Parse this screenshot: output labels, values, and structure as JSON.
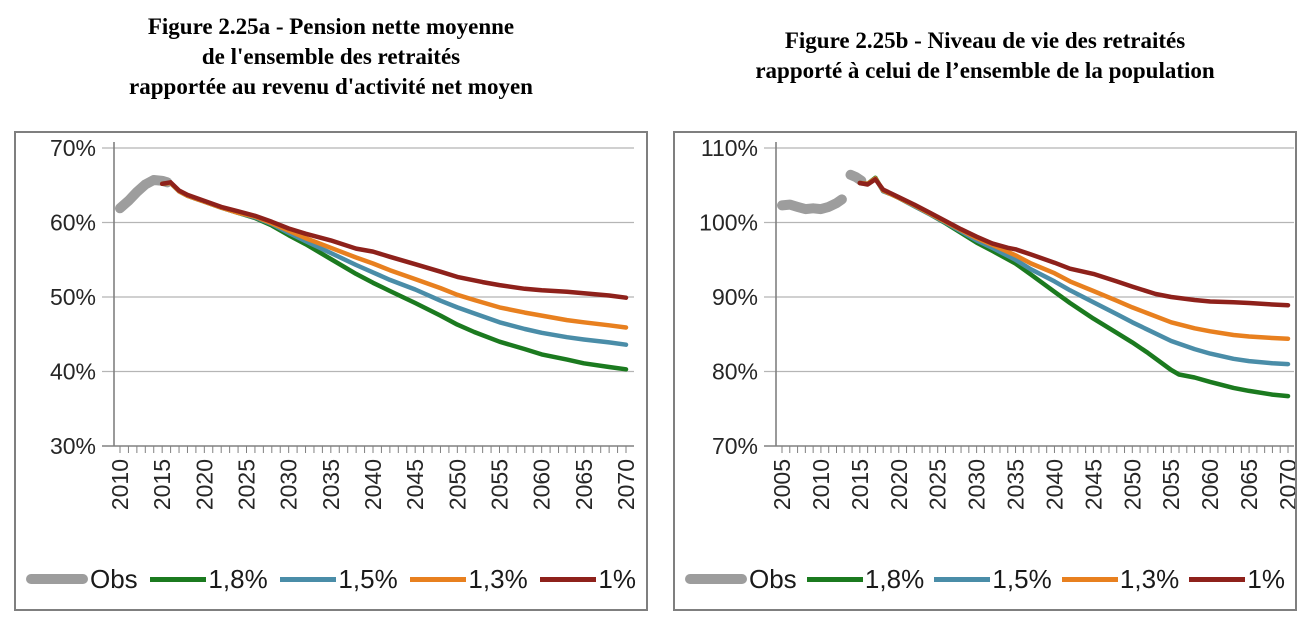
{
  "colors": {
    "obs": "#9d9d9d",
    "s18": "#1b7a1f",
    "s15": "#4a8da8",
    "s13": "#e8801f",
    "s10": "#8e211b",
    "grid": "#b5b5b5",
    "axis": "#808080",
    "tick_text": "#262626"
  },
  "chart_data": [
    {
      "type": "line",
      "title": "Figure 2.25a - Pension nette moyenne de l'ensemble des retraités rapportée au revenu d'activité net moyen",
      "title_lines": [
        "Figure 2.25a - Pension nette moyenne",
        "de l'ensemble des retraités",
        "rapportée au revenu d'activité net moyen"
      ],
      "xlabel": "",
      "ylabel": "",
      "ylim": [
        30,
        70
      ],
      "yticks": [
        30,
        40,
        50,
        60,
        70
      ],
      "ytick_labels": [
        "30%",
        "40%",
        "50%",
        "60%",
        "70%"
      ],
      "xticks": [
        2010,
        2015,
        2020,
        2025,
        2030,
        2035,
        2040,
        2045,
        2050,
        2055,
        2060,
        2065,
        2070
      ],
      "grid": true,
      "legend_position": "bottom",
      "series": [
        {
          "name": "Obs",
          "color_key": "obs",
          "width": 10,
          "x": [
            2010,
            2011,
            2012,
            2013,
            2014,
            2015,
            2015.6
          ],
          "y": [
            61.9,
            62.9,
            64.1,
            65.1,
            65.7,
            65.6,
            65.4
          ]
        },
        {
          "name": "1,8%",
          "color_key": "s18",
          "width": 4.5,
          "x": [
            2015,
            2016,
            2017,
            2018,
            2019,
            2020,
            2022,
            2024,
            2026,
            2028,
            2030,
            2032,
            2035,
            2038,
            2040,
            2042,
            2045,
            2048,
            2050,
            2052,
            2055,
            2058,
            2060,
            2063,
            2065,
            2068,
            2070
          ],
          "y": [
            65.2,
            65.3,
            64.2,
            63.6,
            63.2,
            62.8,
            62.0,
            61.3,
            60.6,
            59.6,
            58.3,
            57.1,
            55.1,
            53.1,
            51.9,
            50.8,
            49.2,
            47.5,
            46.3,
            45.3,
            44.0,
            43.0,
            42.3,
            41.6,
            41.1,
            40.6,
            40.3
          ]
        },
        {
          "name": "1,5%",
          "color_key": "s15",
          "width": 4.5,
          "x": [
            2015,
            2016,
            2017,
            2018,
            2019,
            2020,
            2022,
            2024,
            2026,
            2028,
            2030,
            2032,
            2035,
            2038,
            2040,
            2042,
            2045,
            2048,
            2050,
            2052,
            2055,
            2058,
            2060,
            2063,
            2065,
            2068,
            2070
          ],
          "y": [
            65.2,
            65.3,
            64.2,
            63.6,
            63.2,
            62.8,
            62.0,
            61.3,
            60.7,
            59.8,
            58.6,
            57.5,
            55.9,
            54.3,
            53.3,
            52.3,
            51.0,
            49.5,
            48.6,
            47.8,
            46.6,
            45.7,
            45.2,
            44.6,
            44.3,
            43.9,
            43.6
          ]
        },
        {
          "name": "1,3%",
          "color_key": "s13",
          "width": 4.5,
          "x": [
            2015,
            2016,
            2017,
            2018,
            2019,
            2020,
            2022,
            2024,
            2026,
            2028,
            2030,
            2032,
            2035,
            2038,
            2040,
            2042,
            2045,
            2048,
            2050,
            2052,
            2055,
            2058,
            2060,
            2063,
            2065,
            2068,
            2070
          ],
          "y": [
            65.2,
            65.3,
            64.2,
            63.6,
            63.2,
            62.8,
            62.0,
            61.3,
            60.8,
            59.9,
            58.9,
            57.9,
            56.6,
            55.3,
            54.5,
            53.6,
            52.4,
            51.2,
            50.3,
            49.6,
            48.6,
            47.9,
            47.5,
            46.9,
            46.6,
            46.2,
            45.9
          ]
        },
        {
          "name": "1%",
          "color_key": "s10",
          "width": 4.5,
          "x": [
            2015,
            2016,
            2017,
            2018,
            2019,
            2020,
            2022,
            2024,
            2026,
            2028,
            2030,
            2032,
            2035,
            2038,
            2040,
            2042,
            2045,
            2048,
            2050,
            2053,
            2055,
            2058,
            2060,
            2063,
            2065,
            2068,
            2070
          ],
          "y": [
            65.2,
            65.4,
            64.3,
            63.7,
            63.3,
            62.9,
            62.1,
            61.5,
            60.9,
            60.1,
            59.2,
            58.5,
            57.6,
            56.5,
            56.1,
            55.4,
            54.4,
            53.4,
            52.7,
            52.0,
            51.6,
            51.1,
            50.9,
            50.7,
            50.5,
            50.2,
            49.9
          ]
        }
      ]
    },
    {
      "type": "line",
      "title": "Figure 2.25b - Niveau de vie des retraités rapporté à celui de l’ensemble de la population",
      "title_lines": [
        "Figure 2.25b - Niveau de vie des retraités",
        "rapporté à celui de l’ensemble de la population"
      ],
      "xlabel": "",
      "ylabel": "",
      "ylim": [
        70,
        110
      ],
      "yticks": [
        70,
        80,
        90,
        100,
        110
      ],
      "ytick_labels": [
        "70%",
        "80%",
        "90%",
        "100%",
        "110%"
      ],
      "xticks": [
        2005,
        2010,
        2015,
        2020,
        2025,
        2030,
        2035,
        2040,
        2045,
        2050,
        2055,
        2060,
        2065,
        2070
      ],
      "grid": true,
      "legend_position": "bottom",
      "series": [
        {
          "name": "Obs",
          "color_key": "obs",
          "width": 10,
          "x": [
            2005,
            2006,
            2007,
            2008,
            2009,
            2010,
            2011,
            2012,
            2012.7,
            2013.2,
            2013.8,
            2014.5,
            2015.2
          ],
          "y": [
            102.3,
            102.4,
            102.1,
            101.8,
            101.9,
            101.8,
            102.1,
            102.6,
            103.1,
            null,
            106.4,
            106.1,
            105.6
          ]
        },
        {
          "name": "1,8%",
          "color_key": "s18",
          "width": 4.5,
          "x": [
            2015,
            2016,
            2017,
            2018,
            2019,
            2020,
            2022,
            2024,
            2026,
            2028,
            2030,
            2032,
            2035,
            2037,
            2040,
            2042,
            2045,
            2048,
            2050,
            2052,
            2055,
            2056,
            2058,
            2060,
            2063,
            2065,
            2068,
            2070
          ],
          "y": [
            105.3,
            105.2,
            106.0,
            104.2,
            103.8,
            103.3,
            102.2,
            101.1,
            99.9,
            98.6,
            97.3,
            96.2,
            94.5,
            93.0,
            90.7,
            89.2,
            87.1,
            85.2,
            83.9,
            82.5,
            80.2,
            79.6,
            79.2,
            78.6,
            77.8,
            77.4,
            76.9,
            76.7
          ]
        },
        {
          "name": "1,5%",
          "color_key": "s15",
          "width": 4.5,
          "x": [
            2015,
            2016,
            2017,
            2018,
            2019,
            2020,
            2022,
            2024,
            2026,
            2028,
            2030,
            2032,
            2035,
            2037,
            2040,
            2042,
            2045,
            2048,
            2050,
            2052,
            2055,
            2058,
            2060,
            2063,
            2065,
            2068,
            2070
          ],
          "y": [
            105.3,
            105.2,
            105.9,
            104.2,
            103.8,
            103.3,
            102.2,
            101.1,
            100.0,
            98.8,
            97.6,
            96.6,
            95.0,
            93.7,
            92.1,
            90.9,
            89.3,
            87.7,
            86.6,
            85.6,
            84.1,
            83.0,
            82.4,
            81.7,
            81.4,
            81.1,
            81.0
          ]
        },
        {
          "name": "1,3%",
          "color_key": "s13",
          "width": 4.5,
          "x": [
            2015,
            2016,
            2017,
            2018,
            2019,
            2020,
            2022,
            2024,
            2026,
            2028,
            2030,
            2032,
            2035,
            2037,
            2040,
            2042,
            2045,
            2048,
            2050,
            2052,
            2055,
            2058,
            2060,
            2063,
            2065,
            2068,
            2070
          ],
          "y": [
            105.3,
            105.2,
            105.9,
            104.3,
            103.8,
            103.3,
            102.3,
            101.2,
            100.1,
            99.0,
            97.9,
            97.0,
            95.6,
            94.5,
            93.2,
            92.1,
            90.8,
            89.5,
            88.6,
            87.8,
            86.6,
            85.8,
            85.4,
            84.9,
            84.7,
            84.5,
            84.4
          ]
        },
        {
          "name": "1%",
          "color_key": "s10",
          "width": 4.5,
          "x": [
            2015,
            2016,
            2017,
            2018,
            2019,
            2020,
            2022,
            2024,
            2026,
            2028,
            2030,
            2032,
            2034,
            2035,
            2037,
            2040,
            2042,
            2045,
            2048,
            2050,
            2053,
            2055,
            2058,
            2060,
            2063,
            2065,
            2068,
            2070
          ],
          "y": [
            105.3,
            105.1,
            105.8,
            104.4,
            103.9,
            103.4,
            102.4,
            101.3,
            100.2,
            99.1,
            98.1,
            97.2,
            96.6,
            96.4,
            95.7,
            94.6,
            93.8,
            93.1,
            92.1,
            91.4,
            90.4,
            90.0,
            89.6,
            89.4,
            89.3,
            89.2,
            89.0,
            88.9
          ]
        }
      ]
    }
  ]
}
